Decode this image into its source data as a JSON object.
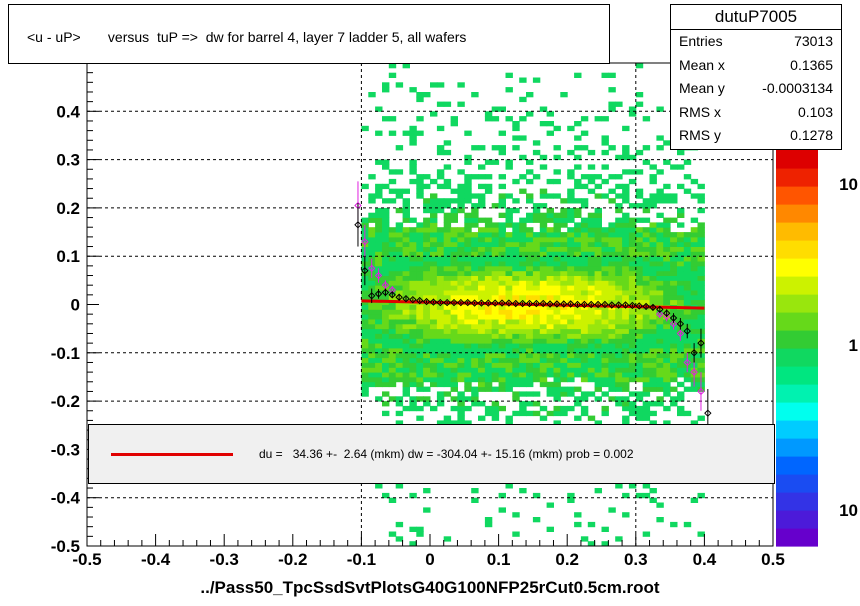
{
  "title": "<u - uP>       versus  tuP =>  dw for barrel 4, layer 7 ladder 5, all wafers",
  "stats": {
    "name": "dutuP7005",
    "rows": [
      {
        "key": "Entries",
        "value": "73013"
      },
      {
        "key": "Mean x",
        "value": "0.1365"
      },
      {
        "key": "Mean y",
        "value": "-0.0003134"
      },
      {
        "key": "RMS x",
        "value": "0.103"
      },
      {
        "key": "RMS y",
        "value": "0.1278"
      }
    ]
  },
  "fit_legend": "du =   34.36 +-  2.64 (mkm) dw = -304.04 +- 15.16 (mkm) prob = 0.002",
  "x_title": "../Pass50_TpcSsdSvtPlotsG40G100NFP25rCut0.5cm.root",
  "colors": {
    "fit": "#e00000",
    "profile_black": "#000000",
    "profile_magenta": "#e020e0"
  },
  "chart_data": {
    "type": "heatmap",
    "xlim": [
      -0.5,
      0.5
    ],
    "ylim": [
      -0.5,
      0.5
    ],
    "x_ticks": [
      "-0.5",
      "-0.4",
      "-0.3",
      "-0.2",
      "-0.1",
      "0",
      "0.1",
      "0.2",
      "0.3",
      "0.4",
      "0.5"
    ],
    "y_ticks": [
      "-0.5",
      "-0.4",
      "-0.3",
      "-0.2",
      "-0.1",
      "0",
      "0.1",
      "0.2",
      "0.3",
      "0.4"
    ],
    "y_ticks_values": [
      -0.5,
      -0.4,
      -0.3,
      -0.2,
      -0.1,
      0,
      0.1,
      0.2,
      0.3,
      0.4
    ],
    "x_ticks_values": [
      -0.5,
      -0.4,
      -0.3,
      -0.2,
      -0.1,
      0,
      0.1,
      0.2,
      0.3,
      0.4,
      0.5
    ],
    "dashed_y": [
      -0.4,
      -0.2,
      -0.1,
      0.1,
      0.2,
      0.3,
      0.4
    ],
    "dashed_x": [
      -0.1,
      0.3
    ],
    "data_x_range": [
      -0.1,
      0.4
    ],
    "color_scale": {
      "log": true,
      "labels": [
        "10",
        "1",
        "10"
      ]
    },
    "fit_line": {
      "x": [
        -0.1,
        0.4
      ],
      "y": [
        0.0075,
        -0.0075
      ]
    },
    "profile_black": {
      "x": [
        -0.105,
        -0.095,
        -0.085,
        -0.075,
        -0.065,
        -0.055,
        -0.045,
        -0.035,
        -0.025,
        -0.015,
        -0.005,
        0.005,
        0.015,
        0.025,
        0.035,
        0.045,
        0.055,
        0.065,
        0.075,
        0.085,
        0.095,
        0.105,
        0.115,
        0.125,
        0.135,
        0.145,
        0.155,
        0.165,
        0.175,
        0.185,
        0.195,
        0.205,
        0.215,
        0.225,
        0.235,
        0.245,
        0.255,
        0.265,
        0.275,
        0.285,
        0.295,
        0.305,
        0.315,
        0.325,
        0.335,
        0.345,
        0.355,
        0.365,
        0.375,
        0.385,
        0.395,
        0.405
      ],
      "y": [
        0.165,
        0.07,
        0.018,
        0.022,
        0.025,
        0.02,
        0.015,
        0.012,
        0.01,
        0.008,
        0.006,
        0.005,
        0.004,
        0.004,
        0.004,
        0.004,
        0.004,
        0.003,
        0.003,
        0.003,
        0.003,
        0.003,
        0.003,
        0.002,
        0.002,
        0.002,
        0.002,
        0.002,
        0.001,
        0.001,
        0.001,
        0.001,
        0.0,
        0.0,
        0.0,
        0.0,
        0.0,
        -0.001,
        -0.001,
        -0.001,
        -0.002,
        -0.003,
        -0.004,
        -0.006,
        -0.01,
        -0.018,
        -0.028,
        -0.04,
        -0.055,
        -0.1,
        -0.08,
        -0.225
      ],
      "err": [
        0.045,
        0.03,
        0.015,
        0.01,
        0.008,
        0.006,
        0.005,
        0.004,
        0.003,
        0.003,
        0.003,
        0.003,
        0.003,
        0.003,
        0.003,
        0.003,
        0.003,
        0.003,
        0.003,
        0.003,
        0.003,
        0.003,
        0.003,
        0.003,
        0.003,
        0.003,
        0.003,
        0.003,
        0.003,
        0.003,
        0.003,
        0.003,
        0.003,
        0.003,
        0.003,
        0.003,
        0.003,
        0.003,
        0.003,
        0.003,
        0.003,
        0.003,
        0.004,
        0.005,
        0.006,
        0.008,
        0.01,
        0.012,
        0.015,
        0.02,
        0.03,
        0.05
      ]
    },
    "profile_magenta": {
      "x": [
        -0.105,
        -0.095,
        -0.085,
        -0.075,
        -0.065,
        -0.055,
        0.335,
        0.345,
        0.355,
        0.365,
        0.375,
        0.385,
        0.395
      ],
      "y": [
        0.205,
        0.13,
        0.075,
        0.06,
        0.04,
        0.03,
        -0.02,
        -0.025,
        -0.04,
        -0.06,
        -0.12,
        -0.14,
        -0.18
      ],
      "err": [
        0.05,
        0.035,
        0.02,
        0.015,
        0.01,
        0.008,
        0.008,
        0.01,
        0.012,
        0.015,
        0.02,
        0.03,
        0.04
      ]
    }
  }
}
